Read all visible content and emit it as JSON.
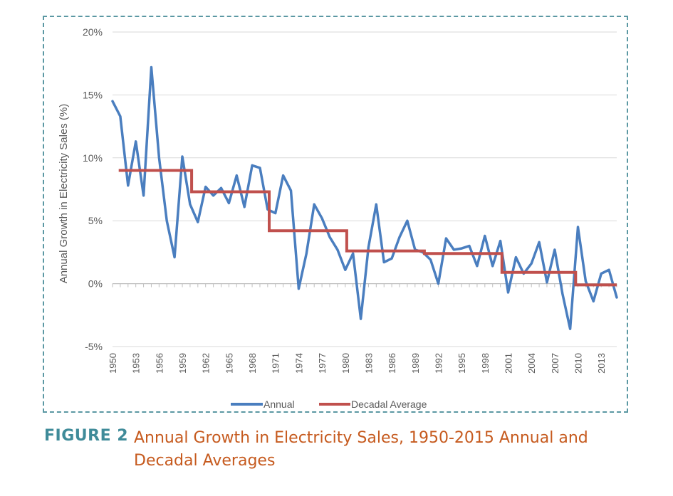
{
  "figure": {
    "label": "FIGURE 2",
    "title": "Annual Growth in Electricity Sales, 1950-2015 Annual and Decadal Averages"
  },
  "chart_data": {
    "type": "line",
    "title": "",
    "xlabel": "",
    "ylabel": "Annual Growth in Electricity Sales (%)",
    "ylim": [
      -5,
      20
    ],
    "yticks": [
      -5,
      0,
      5,
      10,
      15,
      20
    ],
    "ytick_labels": [
      "-5%",
      "0%",
      "5%",
      "10%",
      "15%",
      "20%"
    ],
    "xlim": [
      1950,
      2015
    ],
    "xtick_labels": [
      "1950",
      "1953",
      "1956",
      "1959",
      "1962",
      "1965",
      "1968",
      "1971",
      "1974",
      "1977",
      "1980",
      "1983",
      "1986",
      "1989",
      "1992",
      "1995",
      "1998",
      "2001",
      "2004",
      "2007",
      "2010",
      "2013"
    ],
    "grid": true,
    "legend": "bottom",
    "x": [
      1950,
      1951,
      1952,
      1953,
      1954,
      1955,
      1956,
      1957,
      1958,
      1959,
      1960,
      1961,
      1962,
      1963,
      1964,
      1965,
      1966,
      1967,
      1968,
      1969,
      1970,
      1971,
      1972,
      1973,
      1974,
      1975,
      1976,
      1977,
      1978,
      1979,
      1980,
      1981,
      1982,
      1983,
      1984,
      1985,
      1986,
      1987,
      1988,
      1989,
      1990,
      1991,
      1992,
      1993,
      1994,
      1995,
      1996,
      1997,
      1998,
      1999,
      2000,
      2001,
      2002,
      2003,
      2004,
      2005,
      2006,
      2007,
      2008,
      2009,
      2010,
      2011,
      2012,
      2013,
      2014,
      2015
    ],
    "series": [
      {
        "name": "Annual",
        "color": "#4a7ebf",
        "values": [
          14.5,
          13.3,
          7.8,
          11.3,
          7.0,
          17.2,
          10.0,
          5.0,
          2.1,
          10.1,
          6.3,
          4.9,
          7.7,
          7.0,
          7.6,
          6.4,
          8.6,
          6.1,
          9.4,
          9.2,
          5.9,
          5.6,
          8.6,
          7.4,
          -0.4,
          2.4,
          6.3,
          5.2,
          3.7,
          2.7,
          1.1,
          2.4,
          -2.8,
          2.9,
          6.3,
          1.7,
          2.0,
          3.7,
          5.0,
          2.7,
          2.5,
          1.9,
          0.0,
          3.6,
          2.7,
          2.8,
          3.0,
          1.4,
          3.8,
          1.4,
          3.4,
          -0.7,
          2.1,
          0.8,
          1.6,
          3.3,
          0.1,
          2.7,
          -0.8,
          -3.6,
          4.5,
          0.2,
          -1.4,
          0.8,
          1.1,
          -1.1
        ]
      },
      {
        "name": "Decadal Average",
        "color": "#c0504d",
        "steps": [
          {
            "x_start": 1950.8,
            "x_end": 1960.2,
            "value": 9.0
          },
          {
            "x_start": 1960.2,
            "x_end": 1970.2,
            "value": 7.3
          },
          {
            "x_start": 1970.2,
            "x_end": 1980.2,
            "value": 4.2
          },
          {
            "x_start": 1980.2,
            "x_end": 1990.2,
            "value": 2.6
          },
          {
            "x_start": 1990.2,
            "x_end": 2000.2,
            "value": 2.4
          },
          {
            "x_start": 2000.2,
            "x_end": 2009.7,
            "value": 0.9
          },
          {
            "x_start": 2009.7,
            "x_end": 2015.0,
            "value": -0.1
          }
        ]
      }
    ]
  }
}
